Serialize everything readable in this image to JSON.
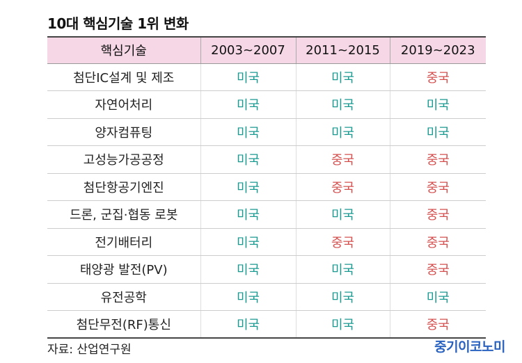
{
  "title": "10대 핵심기술 1위 변화",
  "headers": [
    "핵심기술",
    "2003~2007",
    "2011~2015",
    "2019~2023"
  ],
  "rows": [
    {
      "tech": "첨단IC설계 및 제조",
      "values": [
        "미국",
        "미국",
        "중국"
      ]
    },
    {
      "tech": "자연어처리",
      "values": [
        "미국",
        "미국",
        "미국"
      ]
    },
    {
      "tech": "양자컴퓨팅",
      "values": [
        "미국",
        "미국",
        "미국"
      ]
    },
    {
      "tech": "고성능가공공정",
      "values": [
        "미국",
        "중국",
        "중국"
      ]
    },
    {
      "tech": "첨단항공기엔진",
      "values": [
        "미국",
        "중국",
        "중국"
      ]
    },
    {
      "tech": "드론, 군집·협동 로봇",
      "values": [
        "미국",
        "미국",
        "중국"
      ]
    },
    {
      "tech": "전기배터리",
      "values": [
        "미국",
        "중국",
        "중국"
      ]
    },
    {
      "tech": "태양광 발전(PV)",
      "values": [
        "미국",
        "미국",
        "중국"
      ]
    },
    {
      "tech": "유전공학",
      "values": [
        "미국",
        "미국",
        "미국"
      ]
    },
    {
      "tech": "첨단무전(RF)통신",
      "values": [
        "미국",
        "미국",
        "중국"
      ]
    }
  ],
  "colors": {
    "us": "#1b9a91",
    "cn": "#d4504f",
    "header_bg": "#f6d7e6",
    "logo": "#2a62c0"
  },
  "source": "자료: 산업연구원",
  "logo": "중기이코노미"
}
